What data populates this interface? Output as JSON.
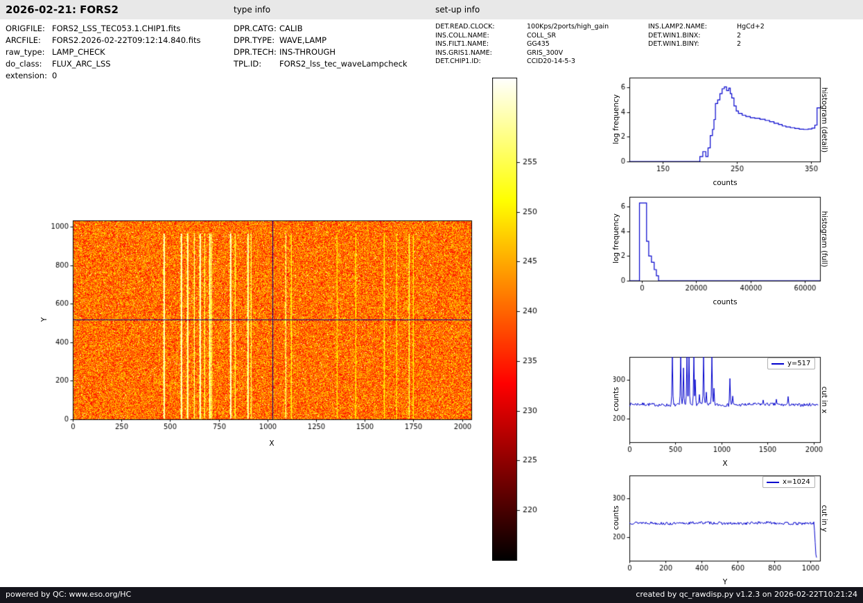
{
  "header": {
    "title": "2026-02-21: FORS2",
    "type_info": "type info",
    "setup_info": "set-up info"
  },
  "file_info": {
    "rows": [
      {
        "label": "ORIGFILE:",
        "value": "FORS2_LSS_TEC053.1.CHIP1.fits"
      },
      {
        "label": "ARCFILE:",
        "value": "FORS2.2026-02-22T09:12:14.840.fits"
      },
      {
        "label": "raw_type:",
        "value": "LAMP_CHECK"
      },
      {
        "label": "do_class:",
        "value": "FLUX_ARC_LSS"
      },
      {
        "label": "extension:",
        "value": "0"
      }
    ]
  },
  "type_info": {
    "rows": [
      {
        "label": "DPR.CATG:",
        "value": "CALIB"
      },
      {
        "label": "DPR.TYPE:",
        "value": "WAVE,LAMP"
      },
      {
        "label": "DPR.TECH:",
        "value": "INS-THROUGH"
      },
      {
        "label": "TPL.ID:",
        "value": "FORS2_lss_tec_waveLampcheck"
      }
    ]
  },
  "setup_info": {
    "col1": [
      {
        "label": "DET.READ.CLOCK:",
        "value": "100Kps/2ports/high_gain"
      },
      {
        "label": "INS.COLL.NAME:",
        "value": "COLL_SR"
      },
      {
        "label": "INS.FILT1.NAME:",
        "value": "GG435"
      },
      {
        "label": "INS.GRIS1.NAME:",
        "value": "GRIS_300V"
      },
      {
        "label": "DET.CHIP1.ID:",
        "value": "CCID20-14-5-3"
      }
    ],
    "col2": [
      {
        "label": "INS.LAMP2.NAME:",
        "value": "HgCd+2"
      },
      {
        "label": "DET.WIN1.BINX:",
        "value": "2"
      },
      {
        "label": "DET.WIN1.BINY:",
        "value": "2"
      }
    ]
  },
  "footer": {
    "left": "powered by QC: www.eso.org/HC",
    "right": "created by qc_rawdisp.py v1.2.3 on 2026-02-22T10:21:24"
  },
  "chart_data": [
    {
      "id": "raw_image",
      "type": "heatmap",
      "xlabel": "X",
      "ylabel": "Y",
      "xlim": [
        0,
        2048
      ],
      "ylim": [
        0,
        1033
      ],
      "xticks": [
        0,
        250,
        500,
        750,
        1000,
        1250,
        1500,
        1750,
        2000
      ],
      "yticks": [
        0,
        200,
        400,
        600,
        800,
        1000
      ],
      "background_level": 236,
      "colormap": "hot",
      "line_y_range": [
        5,
        965
      ],
      "emission_lines": [
        {
          "x": 468,
          "i": 1.0
        },
        {
          "x": 557,
          "i": 1.0
        },
        {
          "x": 588,
          "i": 0.95
        },
        {
          "x": 622,
          "i": 0.8
        },
        {
          "x": 651,
          "i": 1.0
        },
        {
          "x": 678,
          "i": 0.7
        },
        {
          "x": 700,
          "i": 0.95
        },
        {
          "x": 712,
          "i": 0.75
        },
        {
          "x": 808,
          "i": 1.0
        },
        {
          "x": 835,
          "i": 0.65
        },
        {
          "x": 898,
          "i": 0.95
        },
        {
          "x": 917,
          "i": 0.7
        },
        {
          "x": 1093,
          "i": 0.85
        },
        {
          "x": 1122,
          "i": 0.55
        },
        {
          "x": 1358,
          "i": 0.4
        },
        {
          "x": 1452,
          "i": 0.45
        },
        {
          "x": 1598,
          "i": 0.5
        },
        {
          "x": 1662,
          "i": 0.4
        },
        {
          "x": 1727,
          "i": 0.7
        },
        {
          "x": 1748,
          "i": 0.45
        }
      ],
      "crosshair": {
        "x": 1024,
        "y": 517,
        "color": "#00008b"
      }
    },
    {
      "id": "colorbar",
      "type": "colorbar",
      "colormap": "hot",
      "vmin": 215,
      "vmax": 263.5,
      "ticks": [
        255,
        250,
        245,
        240,
        235,
        230,
        225,
        220
      ]
    },
    {
      "id": "histogram_detail",
      "type": "line",
      "step": true,
      "color": "#0000cd",
      "xlabel": "counts",
      "ylabel": "log frequency",
      "right_label": "histogram (detail)",
      "xlim": [
        105,
        362
      ],
      "ylim": [
        0,
        6.8
      ],
      "xticks": [
        150,
        250,
        350
      ],
      "yticks": [
        0,
        2,
        4,
        6
      ],
      "points": [
        [
          105,
          0
        ],
        [
          196,
          0
        ],
        [
          200,
          0.4
        ],
        [
          204,
          0.8
        ],
        [
          208,
          0.4
        ],
        [
          211,
          1.1
        ],
        [
          214,
          2.1
        ],
        [
          217,
          2.6
        ],
        [
          219,
          3.4
        ],
        [
          221,
          4.7
        ],
        [
          224,
          5.0
        ],
        [
          227,
          5.5
        ],
        [
          230,
          5.9
        ],
        [
          233,
          6.05
        ],
        [
          236,
          5.75
        ],
        [
          239,
          5.95
        ],
        [
          241,
          5.5
        ],
        [
          243,
          5.15
        ],
        [
          246,
          4.5
        ],
        [
          249,
          4.1
        ],
        [
          252,
          3.9
        ],
        [
          257,
          3.75
        ],
        [
          262,
          3.65
        ],
        [
          268,
          3.55
        ],
        [
          274,
          3.5
        ],
        [
          281,
          3.42
        ],
        [
          288,
          3.33
        ],
        [
          294,
          3.22
        ],
        [
          300,
          3.1
        ],
        [
          306,
          3.0
        ],
        [
          311,
          2.88
        ],
        [
          316,
          2.8
        ],
        [
          322,
          2.74
        ],
        [
          328,
          2.68
        ],
        [
          334,
          2.62
        ],
        [
          340,
          2.6
        ],
        [
          346,
          2.63
        ],
        [
          351,
          2.7
        ],
        [
          355,
          2.95
        ],
        [
          358,
          4.35
        ],
        [
          362,
          4.35
        ]
      ]
    },
    {
      "id": "histogram_full",
      "type": "line",
      "step": true,
      "color": "#0000cd",
      "xlabel": "counts",
      "ylabel": "log frequency",
      "right_label": "histogram (full)",
      "xlim": [
        -4500,
        65500
      ],
      "ylim": [
        0,
        6.8
      ],
      "xticks": [
        0,
        20000,
        40000,
        60000
      ],
      "yticks": [
        0,
        2,
        4,
        6
      ],
      "points": [
        [
          -4500,
          0
        ],
        [
          -1200,
          0
        ],
        [
          -800,
          6.3
        ],
        [
          1200,
          6.3
        ],
        [
          1800,
          3.2
        ],
        [
          2600,
          2.0
        ],
        [
          3600,
          1.5
        ],
        [
          4600,
          0.9
        ],
        [
          5400,
          0.4
        ],
        [
          6200,
          0
        ],
        [
          65500,
          0
        ]
      ]
    },
    {
      "id": "cut_in_x",
      "type": "line",
      "color": "#0000cd",
      "xlabel": "X",
      "ylabel": "counts",
      "right_label": "cut in x",
      "legend": "y=517",
      "xlim": [
        0,
        2070
      ],
      "ylim": [
        140,
        358
      ],
      "xticks": [
        0,
        500,
        1000,
        1500,
        2000
      ],
      "yticks": [
        200,
        300
      ],
      "baseline": 236,
      "noise_amp": 4,
      "data_end": 2048,
      "spikes": [
        {
          "x": 468,
          "v": 360
        },
        {
          "x": 557,
          "v": 360
        },
        {
          "x": 588,
          "v": 330
        },
        {
          "x": 622,
          "v": 360
        },
        {
          "x": 651,
          "v": 360
        },
        {
          "x": 700,
          "v": 360
        },
        {
          "x": 712,
          "v": 300
        },
        {
          "x": 760,
          "v": 262
        },
        {
          "x": 808,
          "v": 360
        },
        {
          "x": 835,
          "v": 268
        },
        {
          "x": 898,
          "v": 360
        },
        {
          "x": 917,
          "v": 278
        },
        {
          "x": 1093,
          "v": 303
        },
        {
          "x": 1122,
          "v": 258
        },
        {
          "x": 1452,
          "v": 248
        },
        {
          "x": 1598,
          "v": 250
        },
        {
          "x": 1727,
          "v": 257
        }
      ]
    },
    {
      "id": "cut_in_y",
      "type": "line",
      "color": "#0000cd",
      "xlabel": "Y",
      "ylabel": "counts",
      "right_label": "cut in y",
      "legend": "x=1024",
      "xlim": [
        0,
        1055
      ],
      "ylim": [
        140,
        358
      ],
      "xticks": [
        0,
        200,
        400,
        600,
        800,
        1000
      ],
      "yticks": [
        200,
        300
      ],
      "baseline": 236,
      "noise_amp": 3.5,
      "data_end": 1036,
      "edge_drop": {
        "start": 1022,
        "end": 1033,
        "value": 148
      },
      "spikes": []
    }
  ]
}
